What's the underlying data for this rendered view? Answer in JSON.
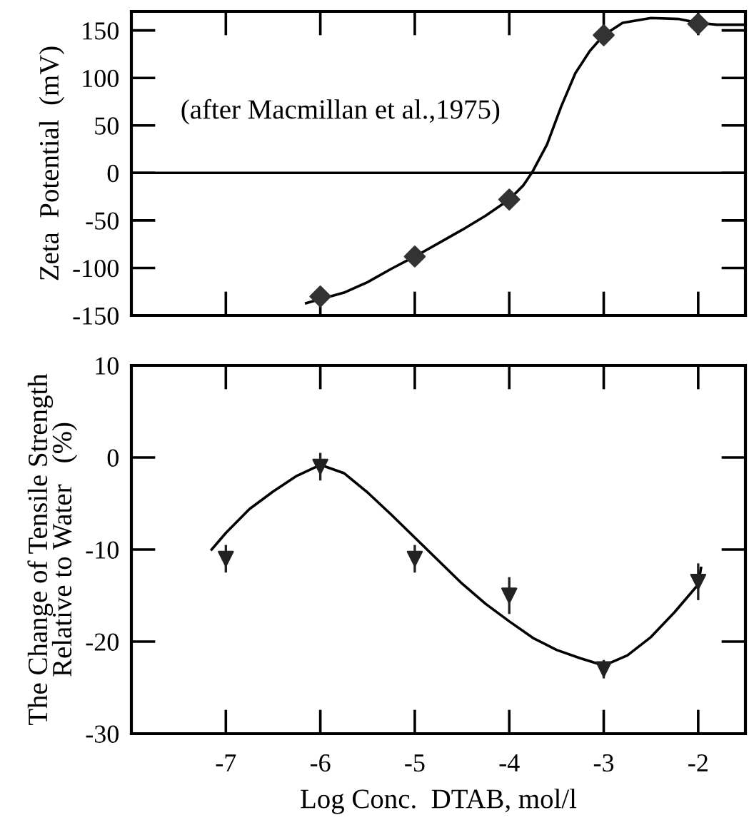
{
  "chart_data": [
    {
      "type": "scatter",
      "ylabel": "Zeta  Potential  (mV)",
      "annotations": [
        "(after Macmillan et al.,1975)"
      ],
      "xlim": [
        -8,
        -1.5
      ],
      "xticks": [
        -7,
        -6,
        -5,
        -4,
        -3,
        -2
      ],
      "ylim": [
        -150,
        170
      ],
      "yticks": [
        -150,
        -100,
        -50,
        0,
        50,
        100,
        150
      ],
      "tick_labels": "y",
      "grid": false,
      "legend": false,
      "ref_lines": [
        {
          "axis": "y",
          "value": 0,
          "color": "#000000"
        }
      ],
      "series": [
        {
          "type": "line",
          "color": "#000000",
          "marker": "none",
          "line_style": "solid",
          "x": [
            -6.15,
            -6,
            -5.75,
            -5.5,
            -5.25,
            -5,
            -4.75,
            -4.5,
            -4.25,
            -4,
            -3.85,
            -3.75,
            -3.6,
            -3.45,
            -3.3,
            -3.15,
            -3,
            -2.8,
            -2.5,
            -2.2,
            -2,
            -1.8,
            -1.5
          ],
          "values": [
            -137,
            -133,
            -126,
            -115,
            -101,
            -88,
            -74,
            -60,
            -45,
            -28,
            -13,
            2,
            30,
            70,
            105,
            128,
            145,
            158,
            163,
            162,
            158,
            156,
            156
          ]
        },
        {
          "color": "#333333",
          "marker": "diamond",
          "x": [
            -6,
            -5,
            -4,
            -3,
            -2
          ],
          "values": [
            -130,
            -88,
            -28,
            145,
            157
          ]
        }
      ]
    },
    {
      "type": "scatter",
      "xlabel": "Log Conc.  DTAB, mol/l",
      "ylabel": "The Change of Tensile Strength\nRelative to Water   (%)",
      "xlim": [
        -8,
        -1.5
      ],
      "xticks": [
        -7,
        -6,
        -5,
        -4,
        -3,
        -2
      ],
      "ylim": [
        -30,
        10
      ],
      "yticks": [
        -30,
        -20,
        -10,
        0,
        10
      ],
      "grid": false,
      "legend": false,
      "series": [
        {
          "type": "line",
          "color": "#000000",
          "marker": "none",
          "line_style": "solid",
          "x": [
            -7.15,
            -7,
            -6.75,
            -6.5,
            -6.25,
            -6,
            -5.75,
            -5.5,
            -5.25,
            -5,
            -4.75,
            -4.5,
            -4.25,
            -4,
            -3.75,
            -3.5,
            -3.25,
            -3,
            -2.75,
            -2.5,
            -2.25,
            -2,
            -1.97
          ],
          "values": [
            -10,
            -8.2,
            -5.6,
            -3.7,
            -2,
            -0.8,
            -1.7,
            -3.8,
            -6.2,
            -8.7,
            -11.2,
            -13.7,
            -15.9,
            -17.8,
            -19.6,
            -20.9,
            -21.8,
            -22.6,
            -21.5,
            -19.5,
            -16.8,
            -13.8,
            -12
          ]
        },
        {
          "color": "#222222",
          "marker": "triangle",
          "x": [
            -7,
            -6,
            -5,
            -4,
            -3,
            -2
          ],
          "values": [
            -11,
            -1,
            -11,
            -15,
            -23,
            -13.5
          ],
          "errors": [
            1.5,
            1.5,
            1.5,
            2,
            1,
            2
          ]
        }
      ]
    }
  ]
}
